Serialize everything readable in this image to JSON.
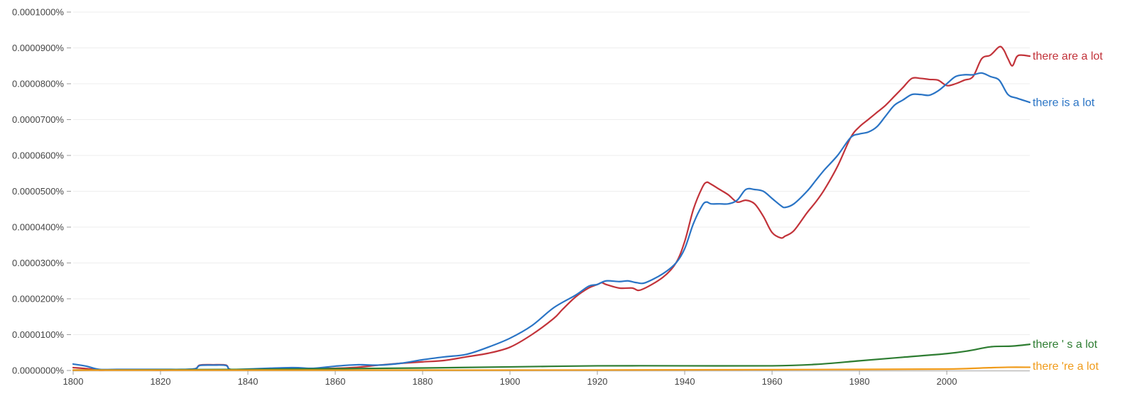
{
  "chart_data": {
    "type": "line",
    "title": "",
    "xlabel": "",
    "ylabel": "",
    "xlim": [
      1800,
      2019
    ],
    "ylim": [
      0,
      0.0001
    ],
    "grid": true,
    "y_ticks": [
      0,
      1e-05,
      2e-05,
      3e-05,
      4e-05,
      5e-05,
      6e-05,
      7e-05,
      8e-05,
      9e-05,
      0.0001
    ],
    "y_tick_labels": [
      "0.0000000%",
      "0.0000100%",
      "0.0000200%",
      "0.0000300%",
      "0.0000400%",
      "0.0000500%",
      "0.0000600%",
      "0.0000700%",
      "0.0000800%",
      "0.0000900%",
      "0.0001000%"
    ],
    "x_ticks": [
      1800,
      1820,
      1840,
      1860,
      1880,
      1900,
      1920,
      1940,
      1960,
      1980,
      2000
    ],
    "x_tick_labels": [
      "1800",
      "1820",
      "1840",
      "1860",
      "1880",
      "1900",
      "1920",
      "1940",
      "1960",
      "1980",
      "2000"
    ],
    "series": [
      {
        "name": "there are a lot",
        "color": "#c2333a",
        "x": [
          1800,
          1804,
          1806,
          1810,
          1820,
          1825,
          1828,
          1829,
          1832,
          1835,
          1836,
          1840,
          1850,
          1860,
          1865,
          1870,
          1875,
          1880,
          1885,
          1890,
          1895,
          1900,
          1905,
          1910,
          1912,
          1915,
          1918,
          1920,
          1921,
          1922,
          1925,
          1928,
          1930,
          1935,
          1938,
          1940,
          1942,
          1944,
          1945,
          1946,
          1948,
          1950,
          1952,
          1954,
          1956,
          1958,
          1960,
          1962,
          1963,
          1965,
          1968,
          1970,
          1972,
          1975,
          1978,
          1980,
          1982,
          1984,
          1986,
          1988,
          1990,
          1992,
          1994,
          1996,
          1998,
          2000,
          2002,
          2004,
          2006,
          2008,
          2010,
          2012,
          2013,
          2014,
          2015,
          2016,
          2017,
          2019
        ],
        "y": [
          8e-07,
          4e-07,
          1e-07,
          2e-07,
          1e-07,
          2e-07,
          5e-07,
          1.5e-06,
          1.6e-06,
          1.5e-06,
          3e-07,
          3e-07,
          5e-07,
          6e-07,
          9e-07,
          1.5e-06,
          2e-06,
          2.4e-06,
          2.8e-06,
          3.8e-06,
          4.8e-06,
          6.5e-06,
          1e-05,
          1.45e-05,
          1.7e-05,
          2.05e-05,
          2.3e-05,
          2.4e-05,
          2.45e-05,
          2.4e-05,
          2.3e-05,
          2.3e-05,
          2.25e-05,
          2.6e-05,
          3e-05,
          3.6e-05,
          4.5e-05,
          5.1e-05,
          5.25e-05,
          5.2e-05,
          5.05e-05,
          4.9e-05,
          4.7e-05,
          4.75e-05,
          4.65e-05,
          4.3e-05,
          3.85e-05,
          3.7e-05,
          3.75e-05,
          3.9e-05,
          4.4e-05,
          4.7e-05,
          5.05e-05,
          5.7e-05,
          6.5e-05,
          6.8e-05,
          7e-05,
          7.2e-05,
          7.4e-05,
          7.65e-05,
          7.9e-05,
          8.15e-05,
          8.15e-05,
          8.12e-05,
          8.1e-05,
          7.95e-05,
          8e-05,
          8.1e-05,
          8.2e-05,
          8.7e-05,
          8.8e-05,
          9.03e-05,
          8.95e-05,
          8.7e-05,
          8.5e-05,
          8.75e-05,
          8.8e-05,
          8.77e-05
        ]
      },
      {
        "name": "there is a lot",
        "color": "#2a74c5",
        "x": [
          1800,
          1803,
          1806,
          1810,
          1820,
          1825,
          1828,
          1829,
          1832,
          1835,
          1836,
          1840,
          1850,
          1855,
          1860,
          1865,
          1870,
          1875,
          1880,
          1885,
          1890,
          1895,
          1900,
          1905,
          1910,
          1915,
          1918,
          1920,
          1922,
          1925,
          1927,
          1929,
          1931,
          1935,
          1938,
          1940,
          1942,
          1944,
          1945,
          1946,
          1948,
          1950,
          1952,
          1954,
          1956,
          1958,
          1960,
          1962,
          1963,
          1965,
          1968,
          1970,
          1972,
          1975,
          1978,
          1980,
          1982,
          1984,
          1986,
          1988,
          1990,
          1992,
          1994,
          1996,
          1998,
          2000,
          2002,
          2004,
          2006,
          2008,
          2010,
          2012,
          2014,
          2016,
          2019
        ],
        "y": [
          1.8e-06,
          1.2e-06,
          3e-07,
          3e-07,
          3e-07,
          3e-07,
          5e-07,
          1.4e-06,
          1.5e-06,
          1.4e-06,
          3e-07,
          4e-07,
          8e-07,
          6e-07,
          1.2e-06,
          1.6e-06,
          1.5e-06,
          2e-06,
          3e-06,
          3.8e-06,
          4.5e-06,
          6.5e-06,
          9e-06,
          1.25e-05,
          1.75e-05,
          2.1e-05,
          2.35e-05,
          2.4e-05,
          2.5e-05,
          2.48e-05,
          2.5e-05,
          2.45e-05,
          2.45e-05,
          2.7e-05,
          3e-05,
          3.4e-05,
          4.1e-05,
          4.6e-05,
          4.7e-05,
          4.65e-05,
          4.65e-05,
          4.65e-05,
          4.75e-05,
          5.05e-05,
          5.05e-05,
          5e-05,
          4.8e-05,
          4.6e-05,
          4.55e-05,
          4.65e-05,
          5e-05,
          5.3e-05,
          5.6e-05,
          6e-05,
          6.5e-05,
          6.6e-05,
          6.65e-05,
          6.8e-05,
          7.1e-05,
          7.4e-05,
          7.55e-05,
          7.7e-05,
          7.7e-05,
          7.68e-05,
          7.8e-05,
          8e-05,
          8.2e-05,
          8.25e-05,
          8.25e-05,
          8.3e-05,
          8.2e-05,
          8.1e-05,
          7.7e-05,
          7.6e-05,
          7.48e-05
        ]
      },
      {
        "name": "there ' s a lot",
        "color": "#2e7d32",
        "x": [
          1800,
          1820,
          1840,
          1860,
          1880,
          1900,
          1920,
          1940,
          1960,
          1970,
          1980,
          1990,
          2000,
          2005,
          2010,
          2015,
          2019
        ],
        "y": [
          1e-07,
          2e-07,
          3e-07,
          5e-07,
          7e-07,
          1e-06,
          1.3e-06,
          1.3e-06,
          1.3e-06,
          1.7e-06,
          2.7e-06,
          3.7e-06,
          4.7e-06,
          5.5e-06,
          6.6e-06,
          6.8e-06,
          7.3e-06
        ]
      },
      {
        "name": "there 're a lot",
        "color": "#f09b1a",
        "x": [
          1800,
          1860,
          1900,
          1950,
          1980,
          2000,
          2008,
          2014,
          2019
        ],
        "y": [
          1e-07,
          1e-07,
          1e-07,
          2e-07,
          3e-07,
          4e-07,
          7e-07,
          9e-07,
          9e-07
        ]
      }
    ]
  }
}
